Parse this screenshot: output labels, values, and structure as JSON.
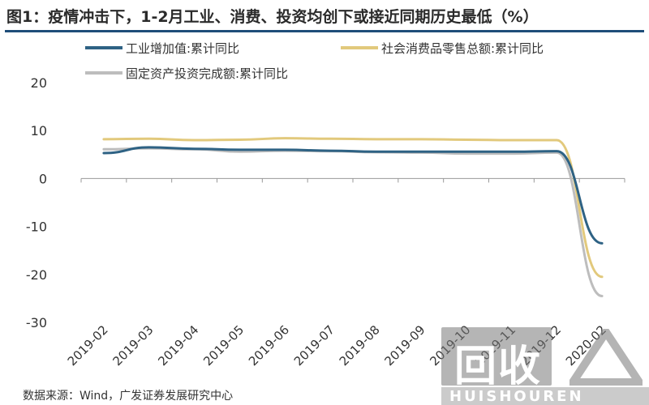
{
  "title": "图1：疫情冲击下，1-2月工业、消费、投资均创下或接近同期历史最低（%）",
  "source": "数据来源：Wind，广发证券发展研究中心",
  "watermark": {
    "logo": "回收",
    "text": "HUISHOUREN"
  },
  "colors": {
    "title_rule": "#1f4e79",
    "axis": "#999999"
  },
  "chart_data": {
    "type": "line",
    "title": "",
    "xlabel": "",
    "ylabel": "",
    "ylim": [
      -30,
      20
    ],
    "yticks": [
      20,
      10,
      0,
      -10,
      -20,
      -30
    ],
    "grid": false,
    "legend_position": "top",
    "categories": [
      "2019-02",
      "2019-03",
      "2019-04",
      "2019-05",
      "2019-06",
      "2019-07",
      "2019-08",
      "2019-09",
      "2019-10",
      "2019-11",
      "2019-12",
      "2020-02"
    ],
    "category_labels": [
      "2019-02",
      "2019-03",
      "2019-04",
      "2019-05",
      "2019-06",
      "2019-07",
      "2019-08",
      "2019-09",
      "2019-10",
      "2019-11",
      "2019-12",
      "2020-02"
    ],
    "series": [
      {
        "name": "工业增加值:累计同比",
        "color": "#2e6284",
        "values": [
          5.3,
          6.5,
          6.2,
          6.0,
          6.0,
          5.8,
          5.6,
          5.6,
          5.6,
          5.6,
          5.7,
          -13.5
        ]
      },
      {
        "name": "社会消费品零售总额:累计同比",
        "color": "#e2c97c",
        "values": [
          8.2,
          8.3,
          8.0,
          8.1,
          8.4,
          8.3,
          8.2,
          8.2,
          8.1,
          8.0,
          8.0,
          -20.5
        ]
      },
      {
        "name": "固定资产投资完成额:累计同比",
        "color": "#bdbdbd",
        "values": [
          6.1,
          6.3,
          6.1,
          5.6,
          5.8,
          5.7,
          5.5,
          5.4,
          5.2,
          5.2,
          5.4,
          -24.5
        ]
      }
    ]
  }
}
